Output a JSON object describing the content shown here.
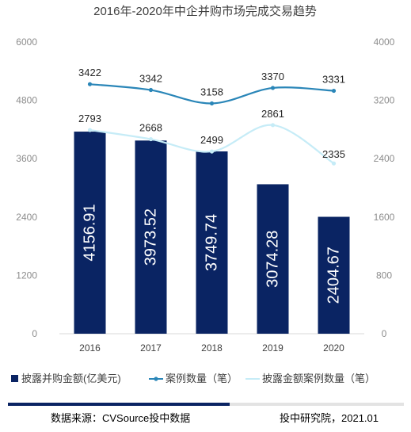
{
  "chart_data": {
    "type": "bar",
    "title": "2016年-2020年中企并购市场完成交易趋势",
    "categories": [
      "2016",
      "2017",
      "2018",
      "2019",
      "2020"
    ],
    "y_left": {
      "min": 0,
      "max": 6000,
      "ticks": [
        "0",
        "1200",
        "2400",
        "3600",
        "4800",
        "6000"
      ]
    },
    "y_right": {
      "min": 0,
      "max": 4000,
      "ticks": [
        "0",
        "800",
        "1600",
        "2400",
        "3200",
        "4000"
      ]
    },
    "series": [
      {
        "name": "披露并购金额(亿美元)",
        "type": "bar",
        "axis": "left",
        "color": "#0a2463",
        "values": [
          4156.91,
          3973.52,
          3749.74,
          3074.28,
          2404.67
        ],
        "labels": [
          "4156.91",
          "3973.52",
          "3749.74",
          "3074.28",
          "2404.67"
        ]
      },
      {
        "name": "案例数量（笔）",
        "type": "line",
        "axis": "right",
        "color": "#2a86b8",
        "values": [
          3422,
          3342,
          3158,
          3370,
          3331
        ],
        "labels": [
          "3422",
          "3342",
          "3158",
          "3370",
          "3331"
        ]
      },
      {
        "name": "披露金额案例数量（笔）",
        "type": "line",
        "axis": "right",
        "color": "#c6ecf7",
        "values": [
          2793,
          2668,
          2499,
          2861,
          2335
        ],
        "labels": [
          "2793",
          "2668",
          "2499",
          "2861",
          "2335"
        ]
      }
    ],
    "legend_position": "bottom",
    "grid": false
  },
  "footer": {
    "source": "数据来源：CVSource投中数据",
    "credit": "投中研究院，2021.01"
  }
}
